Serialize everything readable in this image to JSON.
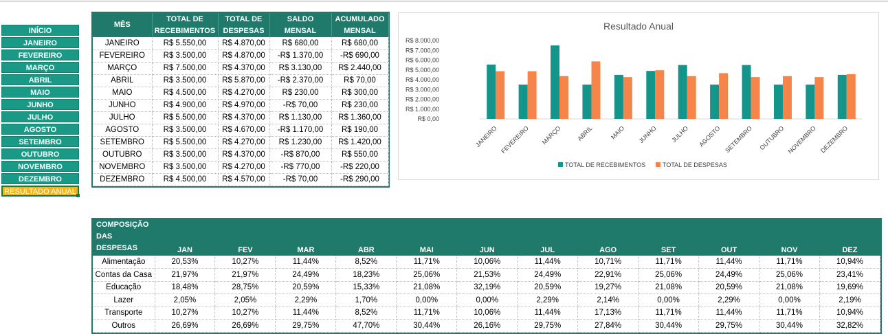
{
  "nav": {
    "items": [
      "INÍCIO",
      "JANEIRO",
      "FEVEREIRO",
      "MARÇO",
      "ABRIL",
      "MAIO",
      "JUNHO",
      "JULHO",
      "AGOSTO",
      "SETEMBRO",
      "OUTUBRO",
      "NOVEMBRO",
      "DEZEMBRO",
      "RESULTADO ANUAL"
    ],
    "active": "RESULTADO ANUAL"
  },
  "monthly_table": {
    "headers": [
      [
        "MÊS"
      ],
      [
        "TOTAL DE",
        "RECEBIMENTOS"
      ],
      [
        "TOTAL DE",
        "DESPESAS"
      ],
      [
        "SALDO",
        "MENSAL"
      ],
      [
        "ACUMULADO",
        "MENSAL"
      ]
    ],
    "rows": [
      [
        "JANEIRO",
        "R$ 5.550,00",
        "R$ 4.870,00",
        "R$ 680,00",
        "R$ 680,00"
      ],
      [
        "FEVEREIRO",
        "R$ 3.500,00",
        "R$ 4.870,00",
        "-R$ 1.370,00",
        "-R$ 690,00"
      ],
      [
        "MARÇO",
        "R$ 7.500,00",
        "R$ 4.370,00",
        "R$ 3.130,00",
        "R$ 2.440,00"
      ],
      [
        "ABRIL",
        "R$ 3.500,00",
        "R$ 5.870,00",
        "-R$ 2.370,00",
        "R$ 70,00"
      ],
      [
        "MAIO",
        "R$ 4.500,00",
        "R$ 4.270,00",
        "R$ 230,00",
        "R$ 300,00"
      ],
      [
        "JUNHO",
        "R$ 4.900,00",
        "R$ 4.970,00",
        "-R$ 70,00",
        "R$ 230,00"
      ],
      [
        "JULHO",
        "R$ 5.500,00",
        "R$ 4.370,00",
        "R$ 1.130,00",
        "R$ 1.360,00"
      ],
      [
        "AGOSTO",
        "R$ 3.500,00",
        "R$ 4.670,00",
        "-R$ 1.170,00",
        "R$ 190,00"
      ],
      [
        "SETEMBRO",
        "R$ 5.500,00",
        "R$ 4.270,00",
        "R$ 1.230,00",
        "R$ 1.420,00"
      ],
      [
        "OUTUBRO",
        "R$ 3.500,00",
        "R$ 4.370,00",
        "-R$ 870,00",
        "R$ 550,00"
      ],
      [
        "NOVEMBRO",
        "R$ 3.500,00",
        "R$ 4.270,00",
        "-R$ 770,00",
        "-R$ 220,00"
      ],
      [
        "DEZEMBRO",
        "R$ 4.500,00",
        "R$ 4.570,00",
        "-R$ 70,00",
        "-R$ 290,00"
      ]
    ]
  },
  "chart_data": {
    "type": "bar",
    "title": "Resultado Anual",
    "categories": [
      "JANEIRO",
      "FEVEREIRO",
      "MARÇO",
      "ABRIL",
      "MAIO",
      "JUNHO",
      "JULHO",
      "AGOSTO",
      "SETEMBRO",
      "OUTUBRO",
      "NOVEMBRO",
      "DEZEMBRO"
    ],
    "series": [
      {
        "name": "TOTAL DE RECEBIMENTOS",
        "color": "#13958c",
        "values": [
          5550,
          3500,
          7500,
          3500,
          4500,
          4900,
          5500,
          3500,
          5500,
          3500,
          3500,
          4500
        ]
      },
      {
        "name": "TOTAL DE DESPESAS",
        "color": "#f5854a",
        "values": [
          4870,
          4870,
          4370,
          5870,
          4270,
          4970,
          4370,
          4670,
          4270,
          4370,
          4270,
          4570
        ]
      }
    ],
    "y_ticks": [
      "R$ 0,00",
      "R$ 1.000,00",
      "R$ 2.000,00",
      "R$ 3.000,00",
      "R$ 4.000,00",
      "R$ 5.000,00",
      "R$ 6.000,00",
      "R$ 7.000,00",
      "R$ 8.000,00"
    ],
    "ylim": [
      0,
      8000
    ],
    "legend_position": "bottom",
    "grid": false
  },
  "composition_table": {
    "header_line1": "COMPOSIÇÃO",
    "header_line2": "DAS DESPESAS",
    "months": [
      "JAN",
      "FEV",
      "MAR",
      "ABR",
      "MAI",
      "JUN",
      "JUL",
      "AGO",
      "SET",
      "OUT",
      "NOV",
      "DEZ"
    ],
    "rows": [
      {
        "label": "Alimentação",
        "values": [
          "20,53%",
          "10,27%",
          "11,44%",
          "8,52%",
          "11,71%",
          "10,06%",
          "11,44%",
          "10,71%",
          "11,71%",
          "11,44%",
          "11,71%",
          "10,94%"
        ]
      },
      {
        "label": "Contas da Casa",
        "values": [
          "21,97%",
          "21,97%",
          "24,49%",
          "18,23%",
          "25,06%",
          "21,53%",
          "24,49%",
          "22,91%",
          "25,06%",
          "24,49%",
          "25,06%",
          "23,41%"
        ]
      },
      {
        "label": "Educação",
        "values": [
          "18,48%",
          "28,75%",
          "20,59%",
          "15,33%",
          "21,08%",
          "32,19%",
          "20,59%",
          "19,27%",
          "21,08%",
          "20,59%",
          "21,08%",
          "19,69%"
        ]
      },
      {
        "label": "Lazer",
        "values": [
          "2,05%",
          "2,05%",
          "2,29%",
          "1,70%",
          "0,00%",
          "0,00%",
          "2,29%",
          "2,14%",
          "0,00%",
          "2,29%",
          "0,00%",
          "2,19%"
        ]
      },
      {
        "label": "Transporte",
        "values": [
          "10,27%",
          "10,27%",
          "11,44%",
          "8,52%",
          "11,71%",
          "10,06%",
          "11,44%",
          "17,13%",
          "11,71%",
          "11,44%",
          "11,71%",
          "10,94%"
        ]
      },
      {
        "label": "Outros",
        "values": [
          "26,69%",
          "26,69%",
          "29,75%",
          "47,70%",
          "30,44%",
          "26,16%",
          "29,75%",
          "27,84%",
          "30,44%",
          "29,75%",
          "30,44%",
          "32,82%"
        ]
      }
    ]
  }
}
